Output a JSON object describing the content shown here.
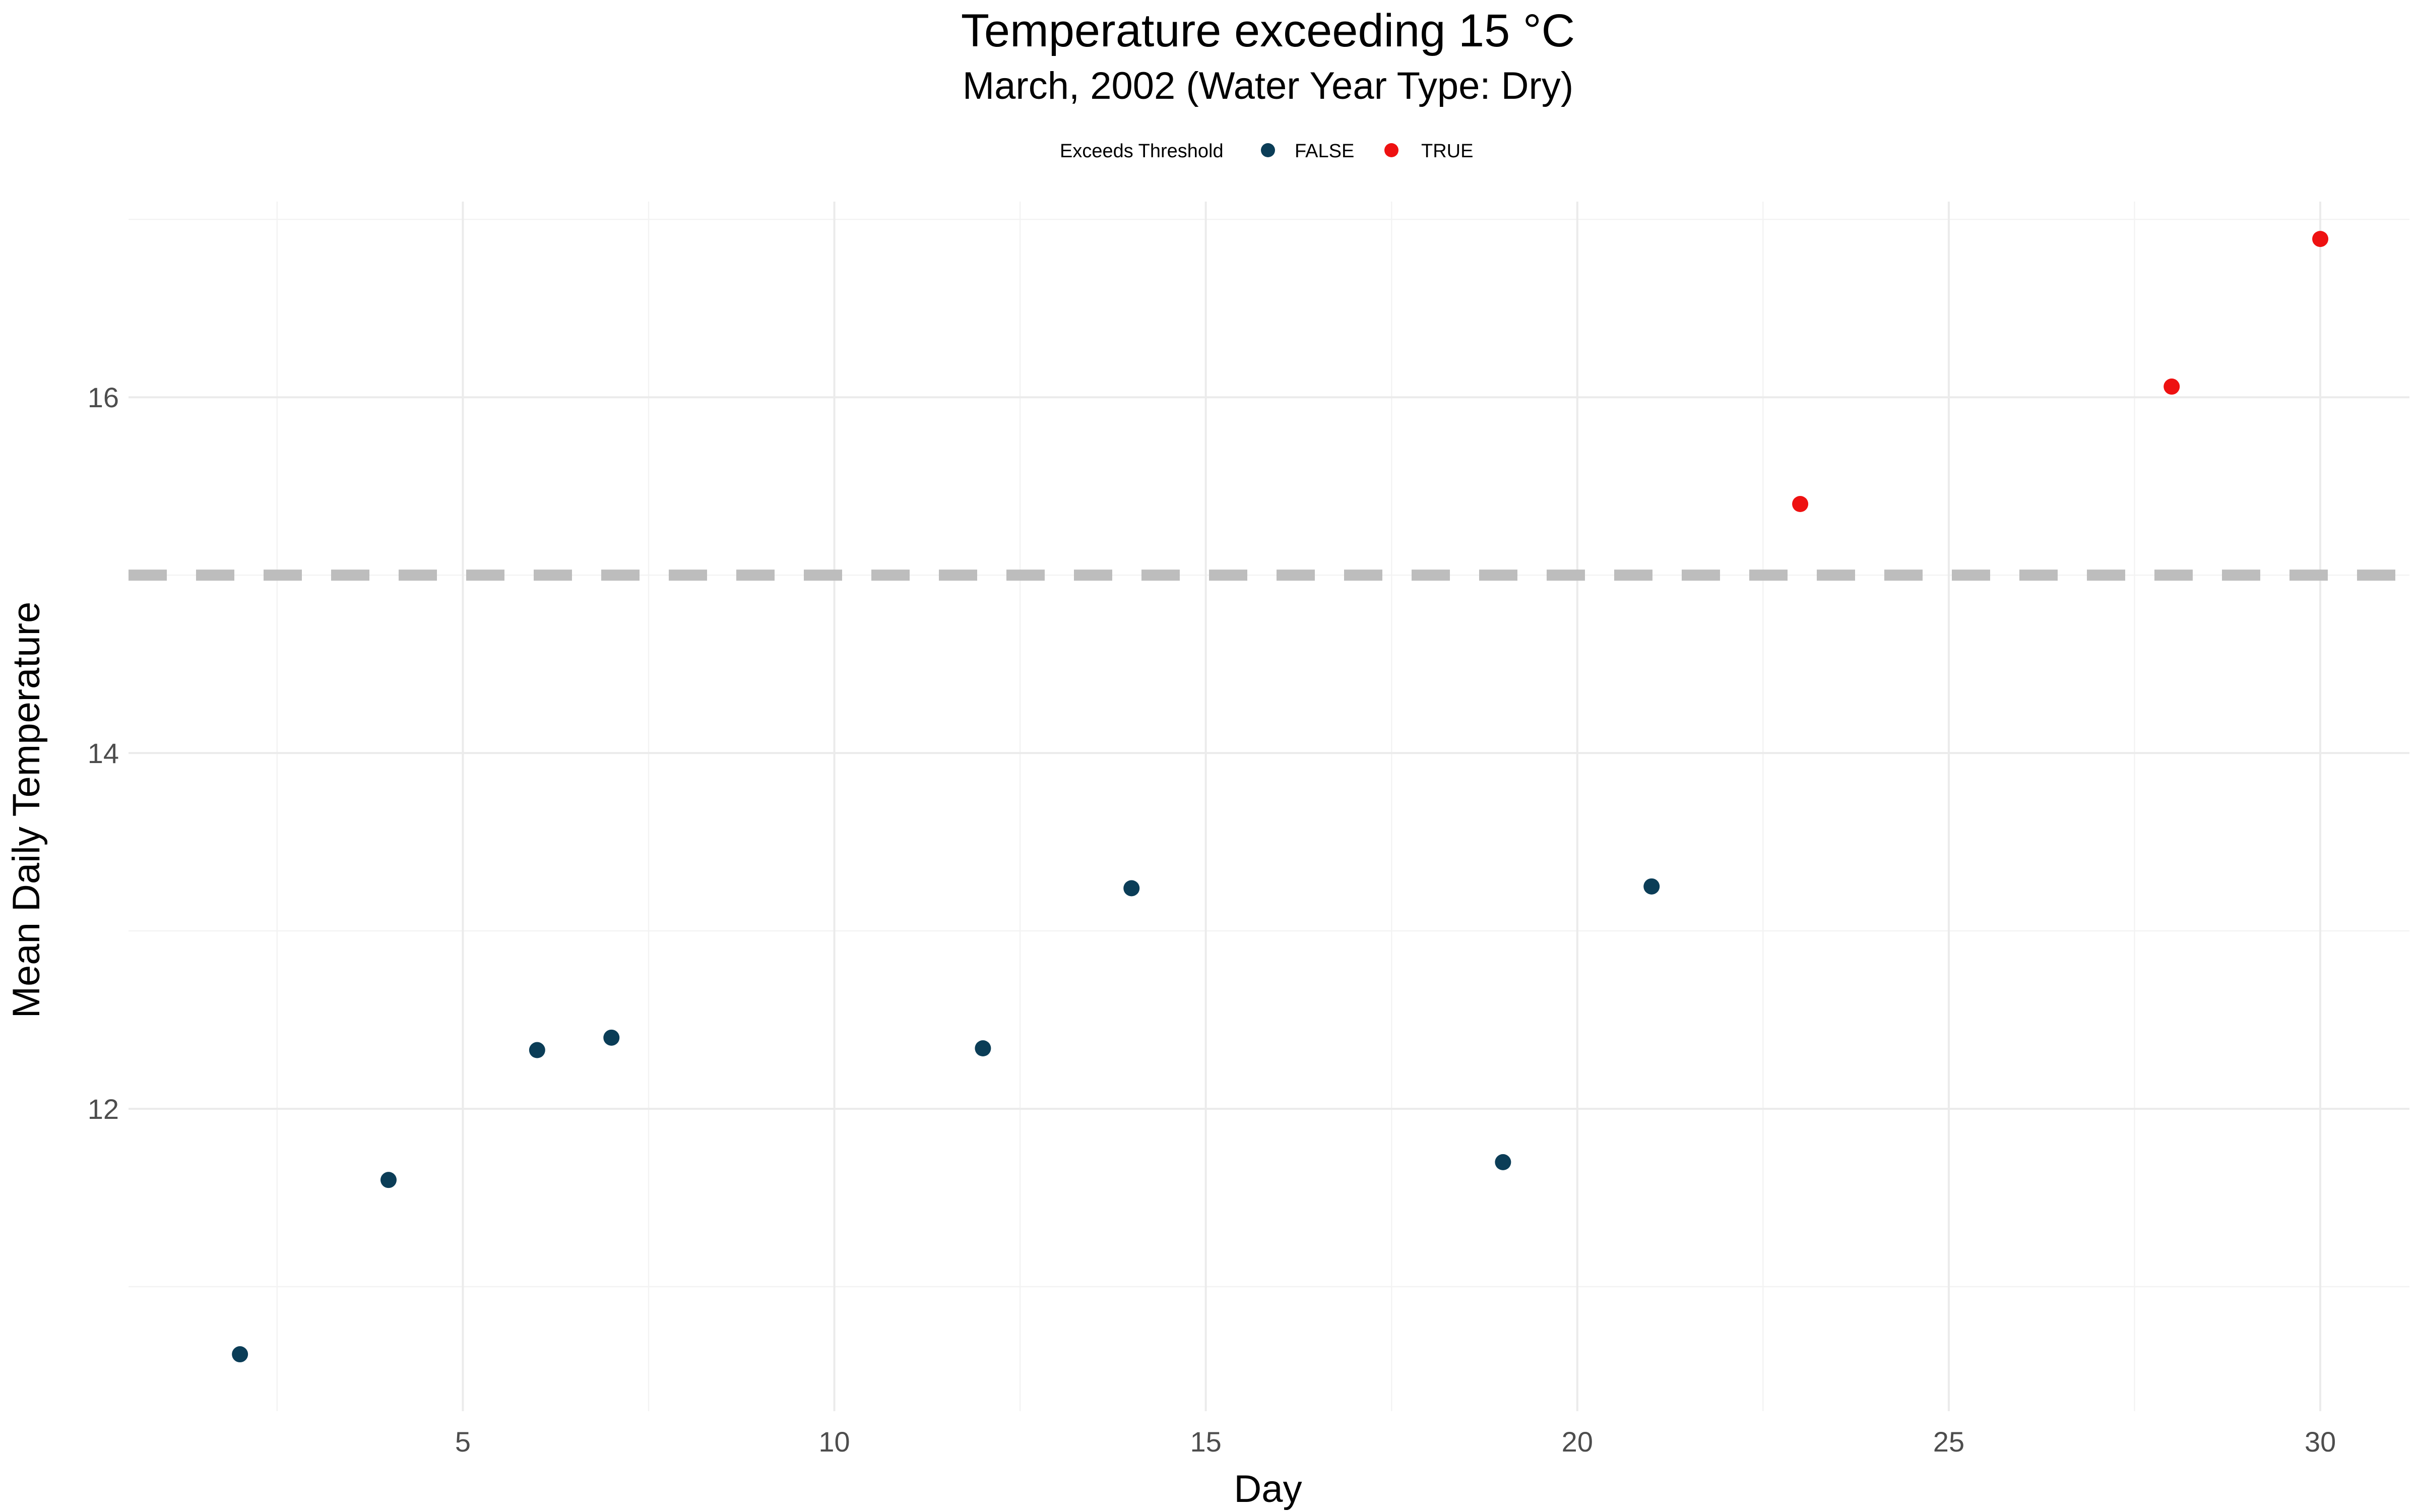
{
  "chart_data": {
    "type": "scatter",
    "title": "Temperature exceeding 15 °C",
    "subtitle": "March, 2002 (Water Year Type: Dry)",
    "xlabel": "Day",
    "ylabel": "Mean Daily Temperature",
    "xlim": [
      0.5,
      31.2
    ],
    "ylim": [
      10.3,
      17.1
    ],
    "x_ticks": [
      5,
      10,
      15,
      20,
      25,
      30
    ],
    "y_ticks": [
      12,
      14,
      16
    ],
    "grid": true,
    "legend": {
      "title": "Exceeds Threshold",
      "position": "top",
      "entries": [
        {
          "label": "FALSE",
          "color": "#0b3d57"
        },
        {
          "label": "TRUE",
          "color": "#ee1111"
        }
      ]
    },
    "threshold": {
      "value": 15,
      "color": "#bdbdbd",
      "style": "dashed"
    },
    "series": [
      {
        "name": "FALSE",
        "color": "#0b3d57",
        "points": [
          {
            "x": 2,
            "y": 10.62
          },
          {
            "x": 4,
            "y": 11.6
          },
          {
            "x": 6,
            "y": 12.33
          },
          {
            "x": 7,
            "y": 12.4
          },
          {
            "x": 12,
            "y": 12.34
          },
          {
            "x": 14,
            "y": 13.24
          },
          {
            "x": 19,
            "y": 11.7
          },
          {
            "x": 21,
            "y": 13.25
          }
        ]
      },
      {
        "name": "TRUE",
        "color": "#ee1111",
        "points": [
          {
            "x": 23,
            "y": 15.4
          },
          {
            "x": 28,
            "y": 16.06
          },
          {
            "x": 30,
            "y": 16.89
          }
        ]
      }
    ]
  }
}
